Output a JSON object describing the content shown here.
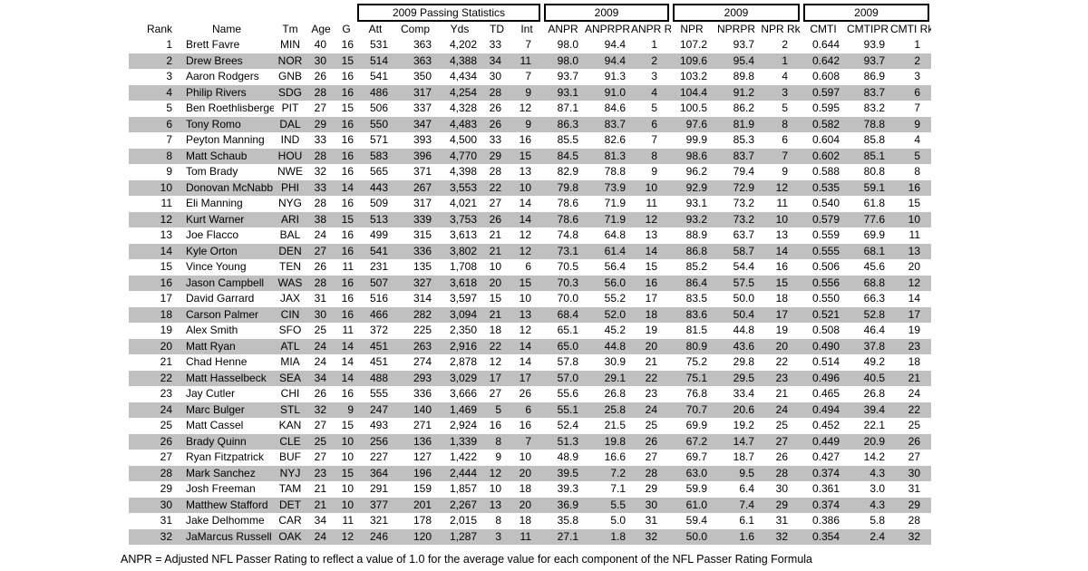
{
  "page": {
    "background": "#ffffff",
    "stripe_color": "#c0c0c0",
    "text_color": "#000000",
    "border_color": "#000000"
  },
  "table": {
    "group_headers": [
      {
        "label": "2009 Passing Statistics",
        "span": [
          "Att",
          "Comp",
          "Yds",
          "TD",
          "Int"
        ]
      },
      {
        "label": "2009",
        "span": [
          "ANPR",
          "ANPRPR",
          "ANPR Rk"
        ]
      },
      {
        "label": "2009",
        "span": [
          "NPR",
          "NPRPR",
          "NPR Rk"
        ]
      },
      {
        "label": "2009",
        "span": [
          "CMTI",
          "CMTIPR",
          "CMTI Rk"
        ]
      }
    ],
    "columns": [
      "Rank",
      "Name",
      "Tm",
      "Age",
      "G",
      "Att",
      "Comp",
      "Yds",
      "TD",
      "Int",
      "ANPR",
      "ANPRPR",
      "ANPR Rk",
      "NPR",
      "NPRPR",
      "NPR Rk",
      "CMTI",
      "CMTIPR",
      "CMTI Rk"
    ],
    "rows": [
      [
        "1",
        "Brett Favre",
        "MIN",
        "40",
        "16",
        "531",
        "363",
        "4,202",
        "33",
        "7",
        "98.0",
        "94.4",
        "1",
        "107.2",
        "93.7",
        "2",
        "0.644",
        "93.9",
        "1"
      ],
      [
        "2",
        "Drew Brees",
        "NOR",
        "30",
        "15",
        "514",
        "363",
        "4,388",
        "34",
        "11",
        "98.0",
        "94.4",
        "2",
        "109.6",
        "95.4",
        "1",
        "0.642",
        "93.7",
        "2"
      ],
      [
        "3",
        "Aaron Rodgers",
        "GNB",
        "26",
        "16",
        "541",
        "350",
        "4,434",
        "30",
        "7",
        "93.7",
        "91.3",
        "3",
        "103.2",
        "89.8",
        "4",
        "0.608",
        "86.9",
        "3"
      ],
      [
        "4",
        "Philip Rivers",
        "SDG",
        "28",
        "16",
        "486",
        "317",
        "4,254",
        "28",
        "9",
        "93.1",
        "91.0",
        "4",
        "104.4",
        "91.2",
        "3",
        "0.597",
        "83.7",
        "6"
      ],
      [
        "5",
        "Ben Roethlisberger",
        "PIT",
        "27",
        "15",
        "506",
        "337",
        "4,328",
        "26",
        "12",
        "87.1",
        "84.6",
        "5",
        "100.5",
        "86.2",
        "5",
        "0.595",
        "83.2",
        "7"
      ],
      [
        "6",
        "Tony Romo",
        "DAL",
        "29",
        "16",
        "550",
        "347",
        "4,483",
        "26",
        "9",
        "86.3",
        "83.7",
        "6",
        "97.6",
        "81.9",
        "8",
        "0.582",
        "78.8",
        "9"
      ],
      [
        "7",
        "Peyton Manning",
        "IND",
        "33",
        "16",
        "571",
        "393",
        "4,500",
        "33",
        "16",
        "85.5",
        "82.6",
        "7",
        "99.9",
        "85.3",
        "6",
        "0.604",
        "85.8",
        "4"
      ],
      [
        "8",
        "Matt Schaub",
        "HOU",
        "28",
        "16",
        "583",
        "396",
        "4,770",
        "29",
        "15",
        "84.5",
        "81.3",
        "8",
        "98.6",
        "83.7",
        "7",
        "0.602",
        "85.1",
        "5"
      ],
      [
        "9",
        "Tom Brady",
        "NWE",
        "32",
        "16",
        "565",
        "371",
        "4,398",
        "28",
        "13",
        "82.9",
        "78.8",
        "9",
        "96.2",
        "79.4",
        "9",
        "0.588",
        "80.8",
        "8"
      ],
      [
        "10",
        "Donovan McNabb",
        "PHI",
        "33",
        "14",
        "443",
        "267",
        "3,553",
        "22",
        "10",
        "79.8",
        "73.9",
        "10",
        "92.9",
        "72.9",
        "12",
        "0.535",
        "59.1",
        "16"
      ],
      [
        "11",
        "Eli Manning",
        "NYG",
        "28",
        "16",
        "509",
        "317",
        "4,021",
        "27",
        "14",
        "78.6",
        "71.9",
        "11",
        "93.1",
        "73.2",
        "11",
        "0.540",
        "61.8",
        "15"
      ],
      [
        "12",
        "Kurt Warner",
        "ARI",
        "38",
        "15",
        "513",
        "339",
        "3,753",
        "26",
        "14",
        "78.6",
        "71.9",
        "12",
        "93.2",
        "73.2",
        "10",
        "0.579",
        "77.6",
        "10"
      ],
      [
        "13",
        "Joe Flacco",
        "BAL",
        "24",
        "16",
        "499",
        "315",
        "3,613",
        "21",
        "12",
        "74.8",
        "64.8",
        "13",
        "88.9",
        "63.7",
        "13",
        "0.559",
        "69.9",
        "11"
      ],
      [
        "14",
        "Kyle Orton",
        "DEN",
        "27",
        "16",
        "541",
        "336",
        "3,802",
        "21",
        "12",
        "73.1",
        "61.4",
        "14",
        "86.8",
        "58.7",
        "14",
        "0.555",
        "68.1",
        "13"
      ],
      [
        "15",
        "Vince Young",
        "TEN",
        "26",
        "11",
        "231",
        "135",
        "1,708",
        "10",
        "6",
        "70.5",
        "56.4",
        "15",
        "85.2",
        "54.4",
        "16",
        "0.506",
        "45.6",
        "20"
      ],
      [
        "16",
        "Jason Campbell",
        "WAS",
        "28",
        "16",
        "507",
        "327",
        "3,618",
        "20",
        "15",
        "70.3",
        "56.0",
        "16",
        "86.4",
        "57.5",
        "15",
        "0.556",
        "68.8",
        "12"
      ],
      [
        "17",
        "David Garrard",
        "JAX",
        "31",
        "16",
        "516",
        "314",
        "3,597",
        "15",
        "10",
        "70.0",
        "55.2",
        "17",
        "83.5",
        "50.0",
        "18",
        "0.550",
        "66.3",
        "14"
      ],
      [
        "18",
        "Carson Palmer",
        "CIN",
        "30",
        "16",
        "466",
        "282",
        "3,094",
        "21",
        "13",
        "68.4",
        "52.0",
        "18",
        "83.6",
        "50.4",
        "17",
        "0.521",
        "52.8",
        "17"
      ],
      [
        "19",
        "Alex Smith",
        "SFO",
        "25",
        "11",
        "372",
        "225",
        "2,350",
        "18",
        "12",
        "65.1",
        "45.2",
        "19",
        "81.5",
        "44.8",
        "19",
        "0.508",
        "46.4",
        "19"
      ],
      [
        "20",
        "Matt Ryan",
        "ATL",
        "24",
        "14",
        "451",
        "263",
        "2,916",
        "22",
        "14",
        "65.0",
        "44.8",
        "20",
        "80.9",
        "43.6",
        "20",
        "0.490",
        "37.8",
        "23"
      ],
      [
        "21",
        "Chad Henne",
        "MIA",
        "24",
        "14",
        "451",
        "274",
        "2,878",
        "12",
        "14",
        "57.8",
        "30.9",
        "21",
        "75.2",
        "29.8",
        "22",
        "0.514",
        "49.2",
        "18"
      ],
      [
        "22",
        "Matt Hasselbeck",
        "SEA",
        "34",
        "14",
        "488",
        "293",
        "3,029",
        "17",
        "17",
        "57.0",
        "29.1",
        "22",
        "75.1",
        "29.5",
        "23",
        "0.496",
        "40.5",
        "21"
      ],
      [
        "23",
        "Jay Cutler",
        "CHI",
        "26",
        "16",
        "555",
        "336",
        "3,666",
        "27",
        "26",
        "55.6",
        "26.8",
        "23",
        "76.8",
        "33.4",
        "21",
        "0.465",
        "26.8",
        "24"
      ],
      [
        "24",
        "Marc Bulger",
        "STL",
        "32",
        "9",
        "247",
        "140",
        "1,469",
        "5",
        "6",
        "55.1",
        "25.8",
        "24",
        "70.7",
        "20.6",
        "24",
        "0.494",
        "39.4",
        "22"
      ],
      [
        "25",
        "Matt Cassel",
        "KAN",
        "27",
        "15",
        "493",
        "271",
        "2,924",
        "16",
        "16",
        "52.4",
        "21.5",
        "25",
        "69.9",
        "19.2",
        "25",
        "0.452",
        "22.1",
        "25"
      ],
      [
        "26",
        "Brady Quinn",
        "CLE",
        "25",
        "10",
        "256",
        "136",
        "1,339",
        "8",
        "7",
        "51.3",
        "19.8",
        "26",
        "67.2",
        "14.7",
        "27",
        "0.449",
        "20.9",
        "26"
      ],
      [
        "27",
        "Ryan Fitzpatrick",
        "BUF",
        "27",
        "10",
        "227",
        "127",
        "1,422",
        "9",
        "10",
        "48.9",
        "16.6",
        "27",
        "69.7",
        "18.7",
        "26",
        "0.427",
        "14.2",
        "27"
      ],
      [
        "28",
        "Mark Sanchez",
        "NYJ",
        "23",
        "15",
        "364",
        "196",
        "2,444",
        "12",
        "20",
        "39.5",
        "7.2",
        "28",
        "63.0",
        "9.5",
        "28",
        "0.374",
        "4.3",
        "30"
      ],
      [
        "29",
        "Josh Freeman",
        "TAM",
        "21",
        "10",
        "291",
        "159",
        "1,857",
        "10",
        "18",
        "39.3",
        "7.1",
        "29",
        "59.9",
        "6.4",
        "30",
        "0.361",
        "3.0",
        "31"
      ],
      [
        "30",
        "Matthew Stafford",
        "DET",
        "21",
        "10",
        "377",
        "201",
        "2,267",
        "13",
        "20",
        "36.9",
        "5.5",
        "30",
        "61.0",
        "7.4",
        "29",
        "0.374",
        "4.3",
        "29"
      ],
      [
        "31",
        "Jake Delhomme",
        "CAR",
        "34",
        "11",
        "321",
        "178",
        "2,015",
        "8",
        "18",
        "35.8",
        "5.0",
        "31",
        "59.4",
        "6.1",
        "31",
        "0.386",
        "5.8",
        "28"
      ],
      [
        "32",
        "JaMarcus Russell",
        "OAK",
        "24",
        "12",
        "246",
        "120",
        "1,287",
        "3",
        "11",
        "27.1",
        "1.8",
        "32",
        "50.0",
        "1.6",
        "32",
        "0.354",
        "2.4",
        "32"
      ]
    ]
  },
  "footnote": "ANPR = Adjusted NFL Passer Rating to reflect a value of 1.0 for the average value for each component of the NFL Passer Rating Formula"
}
